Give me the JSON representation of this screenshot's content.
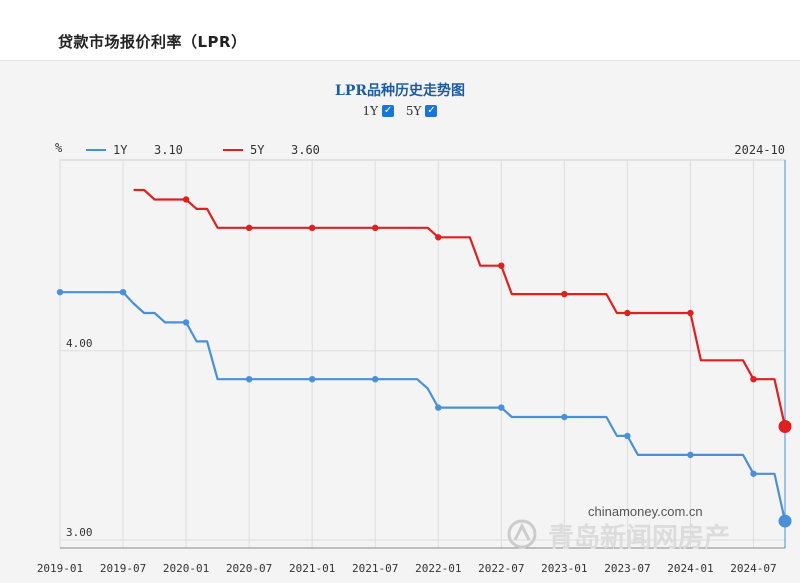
{
  "page": {
    "title": "贷款市场报价利率（LPR）"
  },
  "chart_data": {
    "type": "line",
    "title": "LPR品种历史走势图",
    "y_unit_label": "%",
    "date_label": "2024-10",
    "watermark": "chinamoney.com.cn",
    "watermark2": "青岛新闻网房产",
    "ylim": [
      3.0,
      4.85
    ],
    "yticks": [
      {
        "value": 3.0,
        "label": "3.00"
      },
      {
        "value": 4.0,
        "label": "4.00"
      }
    ],
    "xlim": [
      "2019-01",
      "2024-10"
    ],
    "xticks": [
      "2019-01",
      "2019-07",
      "2020-01",
      "2020-07",
      "2021-01",
      "2021-07",
      "2022-01",
      "2022-07",
      "2023-01",
      "2023-07",
      "2024-01",
      "2024-07"
    ],
    "grid": true,
    "legend_position": "top-left",
    "toggles": [
      {
        "label": "1Y",
        "checked": true
      },
      {
        "label": "5Y",
        "checked": true
      }
    ],
    "series": [
      {
        "name": "1Y",
        "color": "#4a90d9",
        "latest": "3.10",
        "points": [
          [
            "2019-01",
            4.31
          ],
          [
            "2019-02",
            4.31
          ],
          [
            "2019-03",
            4.31
          ],
          [
            "2019-04",
            4.31
          ],
          [
            "2019-05",
            4.31
          ],
          [
            "2019-06",
            4.31
          ],
          [
            "2019-07",
            4.31
          ],
          [
            "2019-08",
            4.25
          ],
          [
            "2019-09",
            4.2
          ],
          [
            "2019-10",
            4.2
          ],
          [
            "2019-11",
            4.15
          ],
          [
            "2019-12",
            4.15
          ],
          [
            "2020-01",
            4.15
          ],
          [
            "2020-02",
            4.05
          ],
          [
            "2020-03",
            4.05
          ],
          [
            "2020-04",
            3.85
          ],
          [
            "2020-05",
            3.85
          ],
          [
            "2020-06",
            3.85
          ],
          [
            "2020-07",
            3.85
          ],
          [
            "2020-08",
            3.85
          ],
          [
            "2020-09",
            3.85
          ],
          [
            "2020-10",
            3.85
          ],
          [
            "2020-11",
            3.85
          ],
          [
            "2020-12",
            3.85
          ],
          [
            "2021-01",
            3.85
          ],
          [
            "2021-02",
            3.85
          ],
          [
            "2021-03",
            3.85
          ],
          [
            "2021-04",
            3.85
          ],
          [
            "2021-05",
            3.85
          ],
          [
            "2021-06",
            3.85
          ],
          [
            "2021-07",
            3.85
          ],
          [
            "2021-08",
            3.85
          ],
          [
            "2021-09",
            3.85
          ],
          [
            "2021-10",
            3.85
          ],
          [
            "2021-11",
            3.85
          ],
          [
            "2021-12",
            3.8
          ],
          [
            "2022-01",
            3.7
          ],
          [
            "2022-02",
            3.7
          ],
          [
            "2022-03",
            3.7
          ],
          [
            "2022-04",
            3.7
          ],
          [
            "2022-05",
            3.7
          ],
          [
            "2022-06",
            3.7
          ],
          [
            "2022-07",
            3.7
          ],
          [
            "2022-08",
            3.65
          ],
          [
            "2022-09",
            3.65
          ],
          [
            "2022-10",
            3.65
          ],
          [
            "2022-11",
            3.65
          ],
          [
            "2022-12",
            3.65
          ],
          [
            "2023-01",
            3.65
          ],
          [
            "2023-02",
            3.65
          ],
          [
            "2023-03",
            3.65
          ],
          [
            "2023-04",
            3.65
          ],
          [
            "2023-05",
            3.65
          ],
          [
            "2023-06",
            3.55
          ],
          [
            "2023-07",
            3.55
          ],
          [
            "2023-08",
            3.45
          ],
          [
            "2023-09",
            3.45
          ],
          [
            "2023-10",
            3.45
          ],
          [
            "2023-11",
            3.45
          ],
          [
            "2023-12",
            3.45
          ],
          [
            "2024-01",
            3.45
          ],
          [
            "2024-02",
            3.45
          ],
          [
            "2024-03",
            3.45
          ],
          [
            "2024-04",
            3.45
          ],
          [
            "2024-05",
            3.45
          ],
          [
            "2024-06",
            3.45
          ],
          [
            "2024-07",
            3.35
          ],
          [
            "2024-08",
            3.35
          ],
          [
            "2024-09",
            3.35
          ],
          [
            "2024-10",
            3.1
          ]
        ],
        "markers": [
          "2019-01",
          "2019-07",
          "2020-01",
          "2020-07",
          "2021-01",
          "2021-07",
          "2022-01",
          "2022-07",
          "2023-01",
          "2023-07",
          "2024-01",
          "2024-07"
        ]
      },
      {
        "name": "5Y",
        "color": "#e02020",
        "latest": "3.60",
        "points": [
          [
            "2019-08",
            4.85
          ],
          [
            "2019-09",
            4.85
          ],
          [
            "2019-10",
            4.8
          ],
          [
            "2019-11",
            4.8
          ],
          [
            "2019-12",
            4.8
          ],
          [
            "2020-01",
            4.8
          ],
          [
            "2020-02",
            4.75
          ],
          [
            "2020-03",
            4.75
          ],
          [
            "2020-04",
            4.65
          ],
          [
            "2020-05",
            4.65
          ],
          [
            "2020-06",
            4.65
          ],
          [
            "2020-07",
            4.65
          ],
          [
            "2020-08",
            4.65
          ],
          [
            "2020-09",
            4.65
          ],
          [
            "2020-10",
            4.65
          ],
          [
            "2020-11",
            4.65
          ],
          [
            "2020-12",
            4.65
          ],
          [
            "2021-01",
            4.65
          ],
          [
            "2021-02",
            4.65
          ],
          [
            "2021-03",
            4.65
          ],
          [
            "2021-04",
            4.65
          ],
          [
            "2021-05",
            4.65
          ],
          [
            "2021-06",
            4.65
          ],
          [
            "2021-07",
            4.65
          ],
          [
            "2021-08",
            4.65
          ],
          [
            "2021-09",
            4.65
          ],
          [
            "2021-10",
            4.65
          ],
          [
            "2021-11",
            4.65
          ],
          [
            "2021-12",
            4.65
          ],
          [
            "2022-01",
            4.6
          ],
          [
            "2022-02",
            4.6
          ],
          [
            "2022-03",
            4.6
          ],
          [
            "2022-04",
            4.6
          ],
          [
            "2022-05",
            4.45
          ],
          [
            "2022-06",
            4.45
          ],
          [
            "2022-07",
            4.45
          ],
          [
            "2022-08",
            4.3
          ],
          [
            "2022-09",
            4.3
          ],
          [
            "2022-10",
            4.3
          ],
          [
            "2022-11",
            4.3
          ],
          [
            "2022-12",
            4.3
          ],
          [
            "2023-01",
            4.3
          ],
          [
            "2023-02",
            4.3
          ],
          [
            "2023-03",
            4.3
          ],
          [
            "2023-04",
            4.3
          ],
          [
            "2023-05",
            4.3
          ],
          [
            "2023-06",
            4.2
          ],
          [
            "2023-07",
            4.2
          ],
          [
            "2023-08",
            4.2
          ],
          [
            "2023-09",
            4.2
          ],
          [
            "2023-10",
            4.2
          ],
          [
            "2023-11",
            4.2
          ],
          [
            "2023-12",
            4.2
          ],
          [
            "2024-01",
            4.2
          ],
          [
            "2024-02",
            3.95
          ],
          [
            "2024-03",
            3.95
          ],
          [
            "2024-04",
            3.95
          ],
          [
            "2024-05",
            3.95
          ],
          [
            "2024-06",
            3.95
          ],
          [
            "2024-07",
            3.85
          ],
          [
            "2024-08",
            3.85
          ],
          [
            "2024-09",
            3.85
          ],
          [
            "2024-10",
            3.6
          ]
        ],
        "markers": [
          "2020-01",
          "2020-07",
          "2021-01",
          "2021-07",
          "2022-01",
          "2022-07",
          "2023-01",
          "2023-07",
          "2024-01",
          "2024-07"
        ]
      }
    ]
  }
}
